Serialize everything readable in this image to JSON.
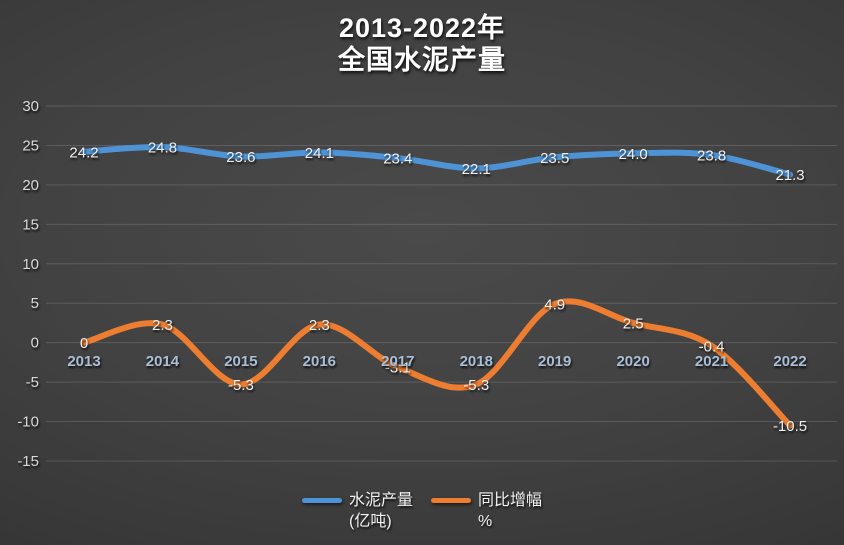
{
  "title": {
    "line1": "2013-2022年",
    "line2": "全国水泥产量"
  },
  "colors": {
    "background_center": "#4a4a4a",
    "background_edge": "#272727",
    "series_blue": "#4e93d6",
    "series_orange": "#ed7d31",
    "category_label": "#a9bfd8",
    "axis_label": "#d9d9d9",
    "data_label": "#efefef",
    "gridline": "rgba(255,255,255,0.14)"
  },
  "chart_data": {
    "type": "line",
    "title": "2013-2022年 全国水泥产量",
    "categories": [
      "2013",
      "2014",
      "2015",
      "2016",
      "2017",
      "2018",
      "2019",
      "2020",
      "2021",
      "2022"
    ],
    "series": [
      {
        "name": "水泥产量 (亿吨)",
        "legend_line1": "水泥产量",
        "legend_line2": "(亿吨)",
        "color": "#4e93d6",
        "values": [
          24.2,
          24.8,
          23.6,
          24.1,
          23.4,
          22.1,
          23.5,
          24.0,
          23.8,
          21.3
        ],
        "labels": [
          "24.2",
          "24.8",
          "23.6",
          "24.1",
          "23.4",
          "22.1",
          "23.5",
          "24.0",
          "23.8",
          "21.3"
        ]
      },
      {
        "name": "同比增幅 %",
        "legend_line1": "同比增幅",
        "legend_line2": "%",
        "color": "#ed7d31",
        "values": [
          0,
          2.3,
          -5.3,
          2.3,
          -3.1,
          -5.3,
          4.9,
          2.5,
          -0.4,
          -10.5
        ],
        "labels": [
          "0",
          "2.3",
          "-5.3",
          "2.3",
          "-3.1",
          "-5.3",
          "4.9",
          "2.5",
          "-0.4",
          "-10.5"
        ]
      }
    ],
    "y_axis": {
      "min": -15,
      "max": 30,
      "step": 5,
      "ticks": [
        "30",
        "25",
        "20",
        "15",
        "10",
        "5",
        "0",
        "-5",
        "-10",
        "-15"
      ]
    },
    "grid": true,
    "legend_position": "bottom",
    "data_label_position": "center"
  }
}
